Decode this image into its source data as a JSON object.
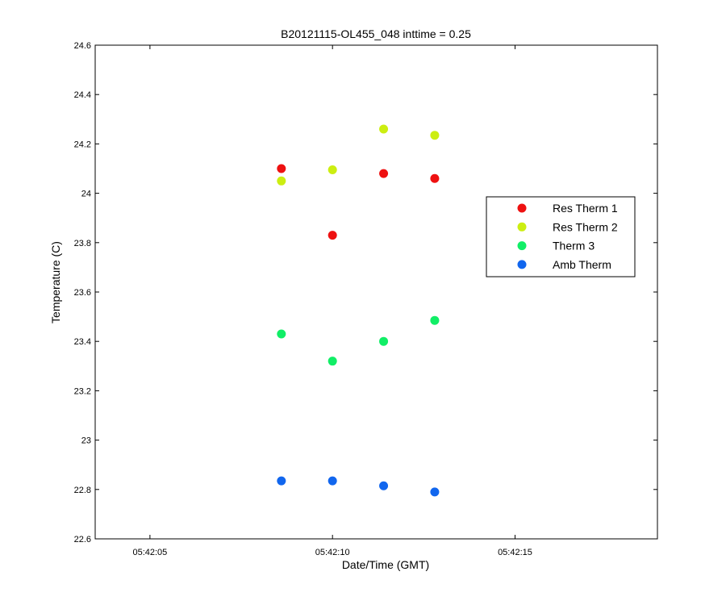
{
  "chart_data": {
    "type": "scatter",
    "title": "B20121115-OL455_048 inttime = 0.25",
    "xlabel": "Date/Time (GMT)",
    "ylabel": "Temperature (C)",
    "x_ticks": [
      "05:42:05",
      "05:42:10",
      "05:42:15"
    ],
    "y_ticks": [
      "22.6",
      "22.8",
      "23",
      "23.2",
      "23.4",
      "23.6",
      "23.8",
      "24",
      "24.2",
      "24.4",
      "24.6"
    ],
    "xlim": [
      "05:42:03.5",
      "05:42:18.9"
    ],
    "ylim": [
      22.6,
      24.6
    ],
    "grid": false,
    "legend_position": "right",
    "x": [
      "05:42:08.6",
      "05:42:10.0",
      "05:42:11.4",
      "05:42:12.8"
    ],
    "series": [
      {
        "name": "Res Therm 1",
        "color": "#ee1111",
        "y": [
          24.1,
          23.83,
          24.08,
          24.06
        ]
      },
      {
        "name": "Res Therm 2",
        "color": "#ccee11",
        "y": [
          24.05,
          24.095,
          24.26,
          24.235
        ]
      },
      {
        "name": "Therm 3",
        "color": "#11ee66",
        "y": [
          23.43,
          23.32,
          23.4,
          23.485
        ]
      },
      {
        "name": "Amb Therm",
        "color": "#1166ee",
        "y": [
          22.835,
          22.835,
          22.815,
          22.79
        ]
      }
    ]
  }
}
